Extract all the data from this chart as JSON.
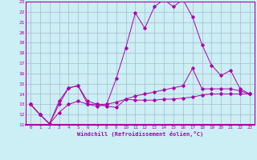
{
  "xlabel": "Windchill (Refroidissement éolien,°C)",
  "x_ticks": [
    0,
    1,
    2,
    3,
    4,
    5,
    6,
    7,
    8,
    9,
    10,
    11,
    12,
    13,
    14,
    15,
    16,
    17,
    18,
    19,
    20,
    21,
    22,
    23
  ],
  "ylim": [
    11,
    23
  ],
  "xlim": [
    -0.5,
    23.5
  ],
  "yticks": [
    11,
    12,
    13,
    14,
    15,
    16,
    17,
    18,
    19,
    20,
    21,
    22,
    23
  ],
  "bg_color": "#cceef5",
  "grid_color": "#aab8cc",
  "line_color": "#aa00aa",
  "series1_x": [
    0,
    1,
    2,
    3,
    4,
    5,
    6,
    7,
    8,
    9,
    10,
    11,
    12,
    13,
    14,
    15,
    16,
    17,
    18,
    19,
    20,
    21,
    22,
    23
  ],
  "series1_y": [
    13.0,
    12.0,
    11.1,
    13.3,
    14.6,
    14.8,
    13.3,
    13.0,
    12.8,
    12.7,
    13.5,
    13.4,
    13.4,
    13.4,
    13.5,
    13.5,
    13.6,
    13.7,
    13.9,
    14.0,
    14.0,
    14.0,
    14.0,
    14.0
  ],
  "series2_x": [
    0,
    1,
    2,
    3,
    4,
    5,
    6,
    7,
    8,
    9,
    10,
    11,
    12,
    13,
    14,
    15,
    16,
    17,
    18,
    19,
    20,
    21,
    22,
    23
  ],
  "series2_y": [
    13.0,
    12.0,
    11.1,
    13.0,
    14.6,
    14.8,
    13.0,
    13.0,
    13.0,
    15.5,
    18.5,
    21.9,
    20.4,
    22.5,
    23.2,
    22.5,
    23.2,
    21.5,
    18.8,
    16.8,
    15.8,
    16.3,
    14.5,
    14.0
  ],
  "series3_x": [
    0,
    1,
    2,
    3,
    4,
    5,
    6,
    7,
    8,
    9,
    10,
    11,
    12,
    13,
    14,
    15,
    16,
    17,
    18,
    19,
    20,
    21,
    22,
    23
  ],
  "series3_y": [
    13.0,
    12.0,
    11.1,
    12.2,
    13.0,
    13.3,
    13.0,
    12.8,
    13.0,
    13.2,
    13.5,
    13.8,
    14.0,
    14.2,
    14.4,
    14.6,
    14.8,
    16.5,
    14.5,
    14.5,
    14.5,
    14.5,
    14.3,
    14.0
  ]
}
